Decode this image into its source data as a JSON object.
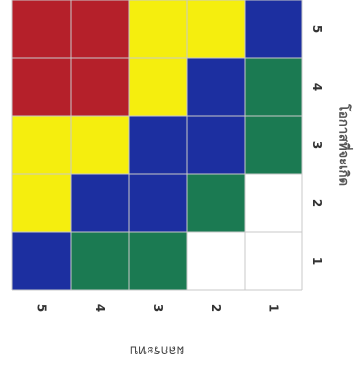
{
  "chart_data": {
    "type": "heatmap",
    "title": "",
    "xlabel": "ผลกระทบ",
    "ylabel": "โอกาสที่จะเกิด",
    "x_categories": [
      "5",
      "4",
      "3",
      "2",
      "1"
    ],
    "y_categories": [
      "1",
      "2",
      "3",
      "4",
      "5"
    ],
    "colors": {
      "red": "#b5202a",
      "yellow": "#f5ee0e",
      "blue": "#1c2fa0",
      "green": "#1b7a52",
      "white": "#ffffff"
    },
    "cells": [
      [
        "red",
        "red",
        "yellow",
        "yellow",
        "blue"
      ],
      [
        "red",
        "red",
        "yellow",
        "blue",
        "green"
      ],
      [
        "yellow",
        "yellow",
        "blue",
        "blue",
        "green"
      ],
      [
        "yellow",
        "blue",
        "blue",
        "green",
        "white"
      ],
      [
        "blue",
        "green",
        "green",
        "white",
        "white"
      ]
    ]
  }
}
